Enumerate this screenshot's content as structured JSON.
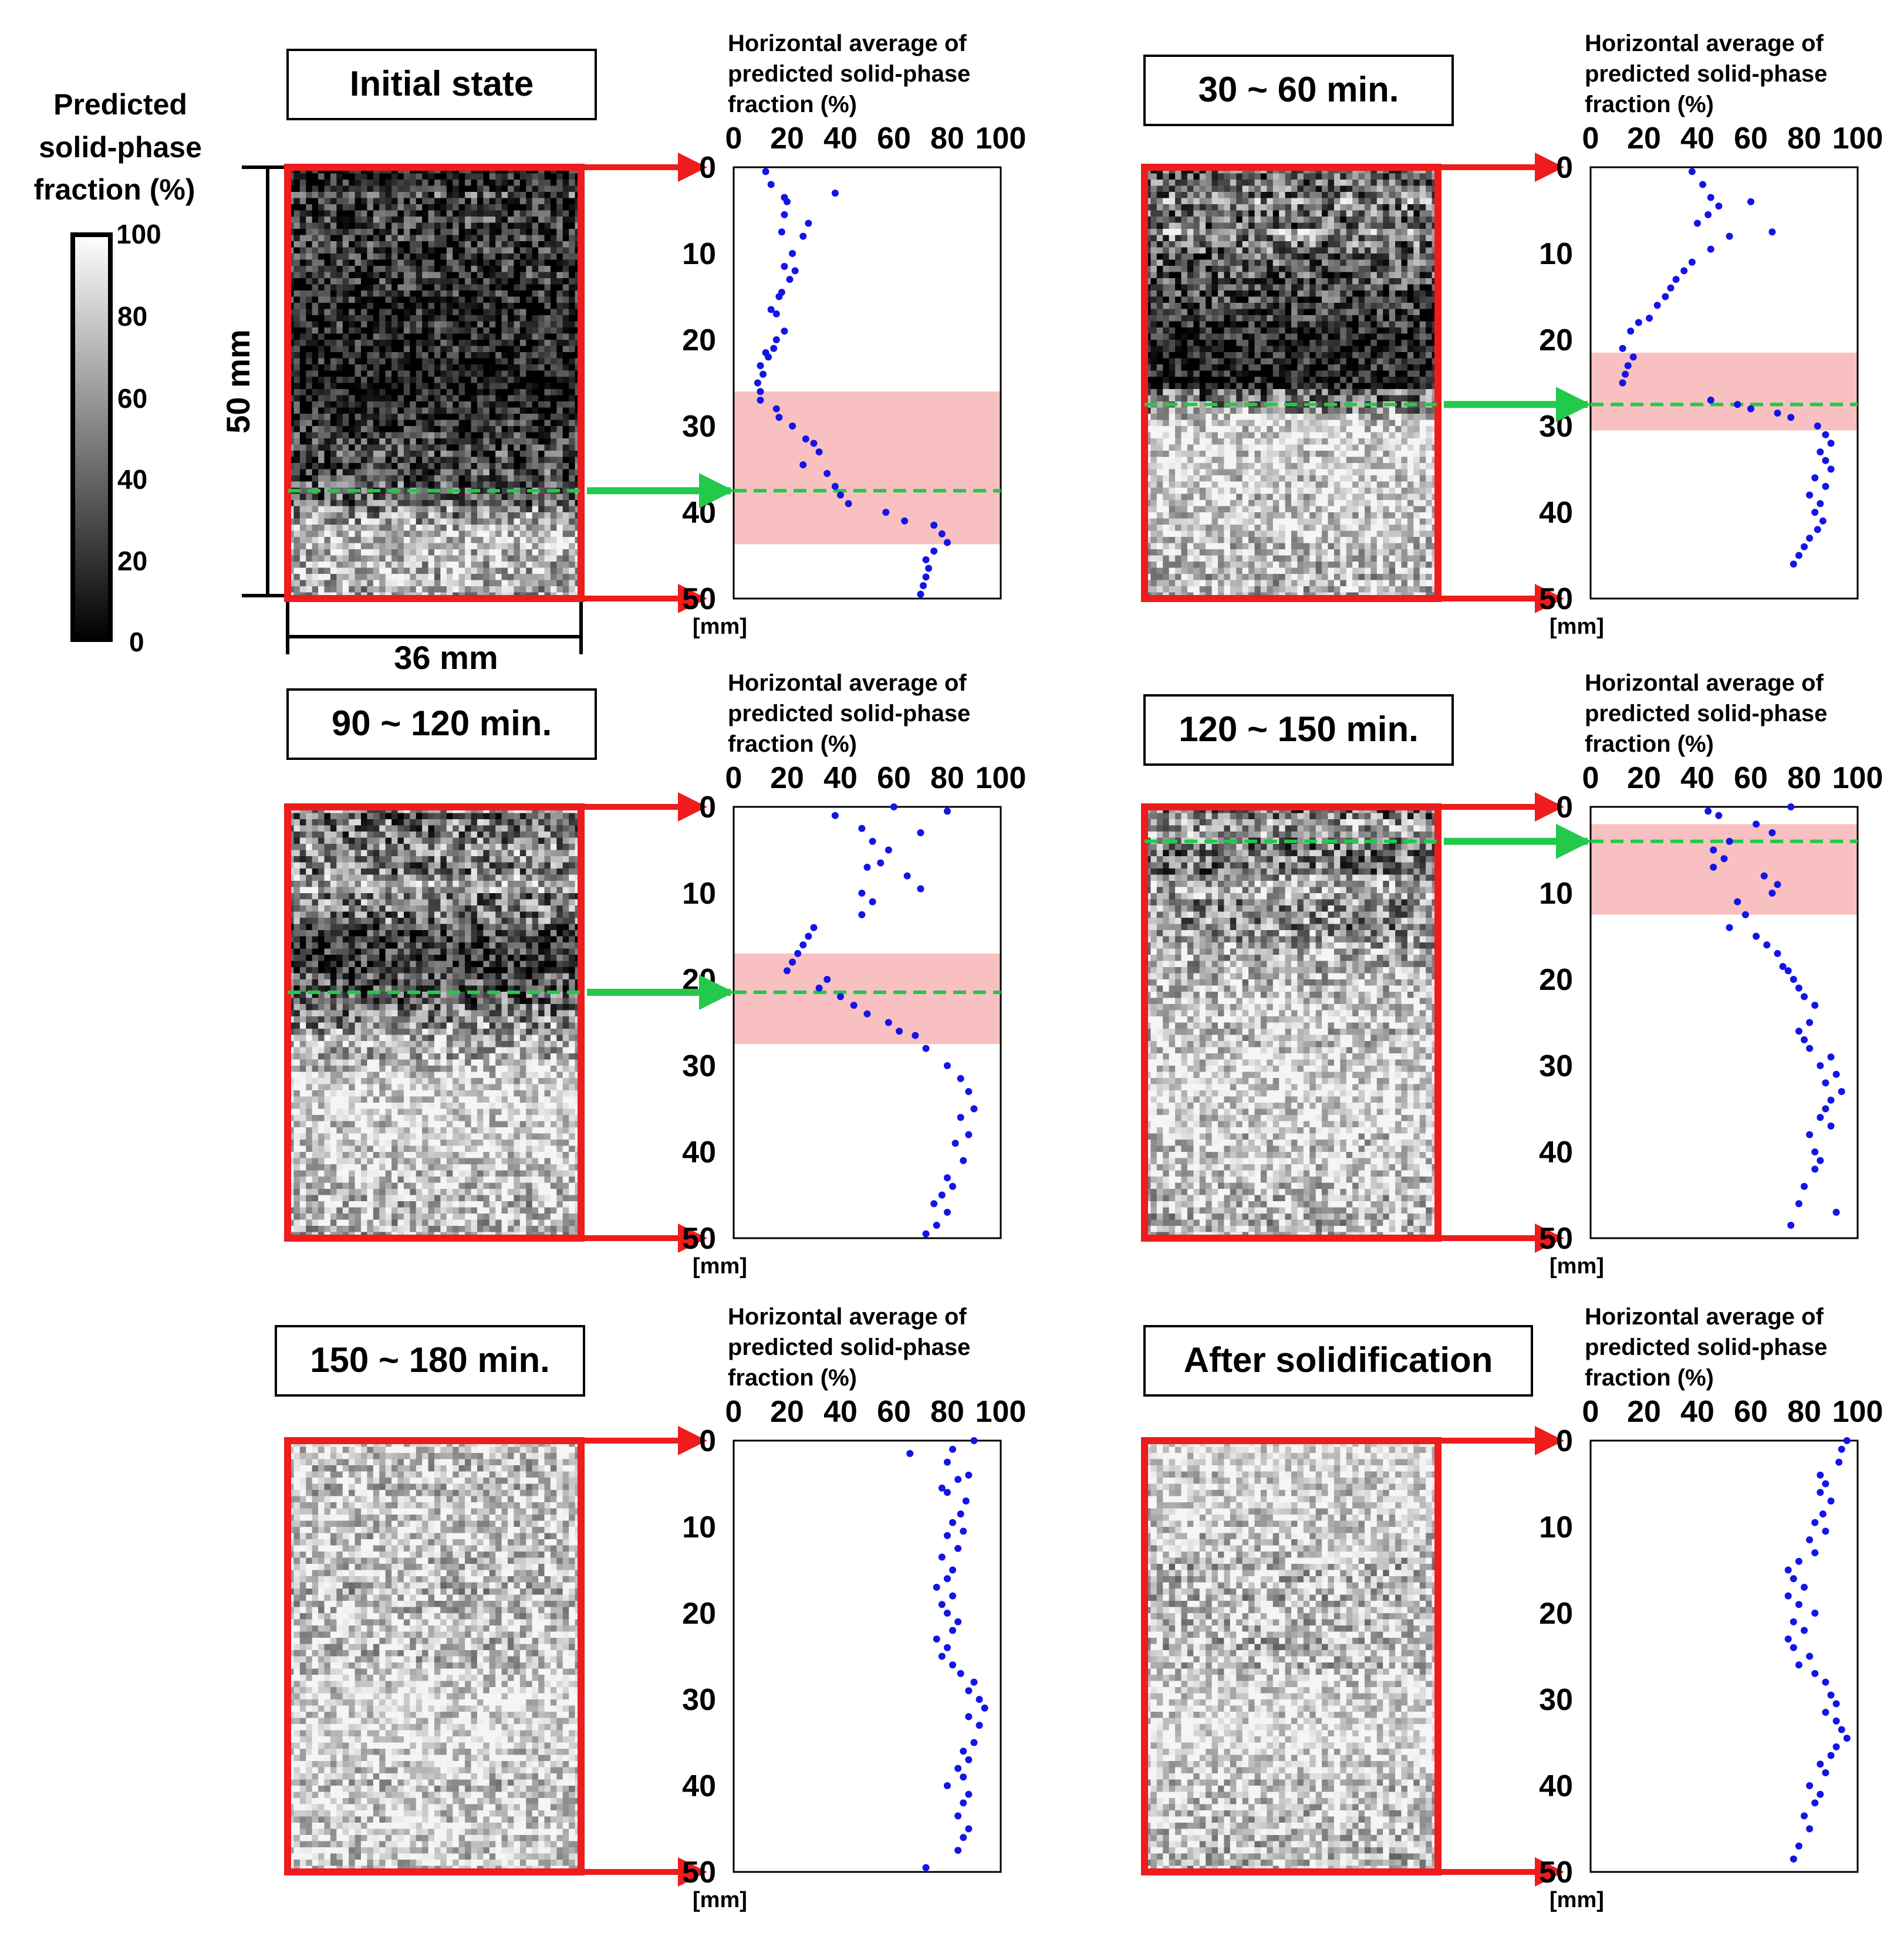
{
  "colorbar": {
    "title_lines": [
      "Predicted",
      "solid-phase",
      "fraction (%)"
    ],
    "ticks": [
      "100",
      "80",
      "60",
      "40",
      "20",
      "0"
    ]
  },
  "dimensions": {
    "height_label": "50 mm",
    "width_label": "36 mm"
  },
  "axis_title_lines": [
    "Horizontal average of",
    "predicted solid-phase",
    "fraction (%)"
  ],
  "x_ticks": [
    "0",
    "20",
    "40",
    "60",
    "80",
    "100"
  ],
  "y_ticks": [
    "0",
    "10",
    "20",
    "30",
    "40",
    "50"
  ],
  "y_unit": "[mm]",
  "colors": {
    "frame": "#ee1c1c",
    "points": "#1414e6",
    "interface": "#22c94a",
    "band": "#f7b5b5"
  },
  "chart_data": [
    {
      "type": "scatter",
      "title": "Initial state",
      "xlabel": "Horizontal average of predicted solid-phase fraction (%)",
      "ylabel": "[mm]",
      "xlim": [
        0,
        100
      ],
      "ylim": [
        50,
        0
      ],
      "interface_depth_mm": 37.5,
      "band_mm": [
        26,
        43.7
      ],
      "x": [
        12,
        14,
        19,
        20,
        19,
        38,
        18,
        28,
        26,
        22,
        19,
        23,
        21,
        18,
        17,
        16,
        14,
        19,
        16,
        15,
        12,
        13,
        10,
        11,
        9,
        10,
        10,
        16,
        17,
        22,
        27,
        30,
        32,
        26,
        35,
        38,
        40,
        43,
        57,
        64,
        75,
        78,
        80,
        75,
        72,
        73,
        72,
        71,
        70
      ],
      "y": [
        0.5,
        2,
        3.5,
        4,
        5.5,
        3,
        7.5,
        6.5,
        8,
        10,
        11.5,
        12,
        13,
        14.5,
        15,
        17,
        16.5,
        19,
        20,
        21,
        21.5,
        22,
        23,
        24,
        25,
        26,
        27,
        28,
        29,
        30,
        31.5,
        32,
        33,
        34.5,
        35.5,
        37,
        38,
        39,
        40,
        41,
        41.5,
        42.5,
        43.5,
        44.5,
        45.5,
        46.5,
        47.5,
        48.5,
        49.5
      ]
    },
    {
      "type": "scatter",
      "title": "30 ~ 60 min.",
      "xlabel": "Horizontal average of predicted solid-phase fraction (%)",
      "ylabel": "[mm]",
      "xlim": [
        0,
        100
      ],
      "ylim": [
        50,
        0
      ],
      "interface_depth_mm": 27.5,
      "band_mm": [
        21.5,
        30.5
      ],
      "x": [
        38,
        42,
        45,
        60,
        48,
        44,
        40,
        68,
        52,
        45,
        38,
        35,
        32,
        30,
        28,
        25,
        22,
        18,
        15,
        12,
        16,
        14,
        13,
        12,
        45,
        55,
        60,
        70,
        75,
        85,
        88,
        90,
        86,
        88,
        90,
        84,
        88,
        82,
        86,
        84,
        87,
        85,
        82,
        80,
        78,
        76
      ],
      "y": [
        0.5,
        2,
        3.5,
        4,
        4.5,
        5.5,
        6.5,
        7.5,
        8,
        9.5,
        11,
        12,
        13,
        14,
        15,
        16,
        17.5,
        18,
        19,
        21,
        22,
        23,
        24,
        25,
        27,
        27.5,
        28,
        28.5,
        29,
        30,
        31,
        32,
        33,
        34,
        35,
        36,
        37,
        38,
        39,
        40,
        41,
        42,
        43,
        44,
        45,
        46
      ]
    },
    {
      "type": "scatter",
      "title": "90 ~ 120 min.",
      "xlabel": "Horizontal average of predicted solid-phase fraction (%)",
      "ylabel": "[mm]",
      "xlim": [
        0,
        100
      ],
      "ylim": [
        50,
        0
      ],
      "interface_depth_mm": 21.5,
      "band_mm": [
        17,
        27.5
      ],
      "x": [
        60,
        38,
        48,
        52,
        58,
        55,
        50,
        65,
        70,
        48,
        52,
        48,
        30,
        28,
        26,
        24,
        22,
        20,
        35,
        32,
        40,
        45,
        50,
        58,
        62,
        68,
        72,
        80,
        85,
        88,
        90,
        85,
        88,
        83,
        86,
        80,
        82,
        78,
        75,
        80,
        76,
        72
      ],
      "y": [
        0,
        1,
        2.5,
        4,
        5,
        6.5,
        7,
        8,
        9.5,
        10,
        11,
        12.5,
        14,
        15,
        16,
        17,
        18,
        19,
        20,
        21,
        22,
        23,
        24,
        25,
        26,
        26.5,
        28,
        30,
        31.5,
        33,
        35,
        36,
        38,
        39,
        41,
        43,
        44,
        45,
        46,
        47,
        48.5,
        49.5
      ],
      "extra": {
        "x": [
          70,
          80
        ],
        "y": [
          3,
          0.5
        ]
      }
    },
    {
      "type": "scatter",
      "title": "120 ~ 150 min.",
      "xlabel": "Horizontal average of predicted solid-phase fraction (%)",
      "ylabel": "[mm]",
      "xlim": [
        0,
        100
      ],
      "ylim": [
        50,
        0
      ],
      "interface_depth_mm": 4,
      "band_mm": [
        2,
        12.5
      ],
      "x": [
        75,
        44,
        48,
        62,
        68,
        52,
        46,
        50,
        46,
        65,
        70,
        68,
        55,
        58,
        52,
        62,
        66,
        70,
        72,
        74,
        76,
        78,
        84,
        80,
        82,
        78,
        80,
        82,
        90,
        86,
        92,
        88,
        94,
        90,
        88,
        86,
        90,
        82,
        84,
        86,
        84,
        80,
        78,
        75
      ],
      "y": [
        0,
        0.5,
        1,
        2,
        3,
        4,
        5,
        6,
        7,
        8,
        9,
        10,
        11,
        12.5,
        14,
        15,
        16,
        17,
        18.5,
        19,
        20,
        21,
        23,
        22,
        25,
        26,
        27,
        28,
        29,
        30,
        31,
        32,
        33,
        34,
        35,
        36,
        37,
        38,
        40,
        41,
        42,
        44,
        46,
        48.5
      ],
      "extra": {
        "x": [
          92
        ],
        "y": [
          47
        ]
      }
    },
    {
      "type": "scatter",
      "title": "150 ~ 180 min.",
      "xlabel": "Horizontal average of predicted solid-phase fraction (%)",
      "ylabel": "[mm]",
      "xlim": [
        0,
        100
      ],
      "ylim": [
        50,
        0
      ],
      "interface_depth_mm": null,
      "band_mm": null,
      "x": [
        90,
        82,
        80,
        88,
        84,
        78,
        80,
        87,
        85,
        82,
        86,
        80,
        84,
        78,
        82,
        80,
        76,
        82,
        78,
        80,
        84,
        82,
        76,
        80,
        78,
        82,
        85,
        90,
        88,
        92,
        94,
        88,
        92,
        90,
        86,
        88,
        84,
        86,
        80,
        88,
        86,
        84,
        88,
        86,
        84
      ],
      "y": [
        0,
        1,
        2.5,
        4,
        4.5,
        5.5,
        6,
        7,
        8.5,
        9.5,
        10.5,
        11,
        12.5,
        13.5,
        15,
        16,
        17,
        18,
        19,
        20,
        21,
        22,
        23,
        24,
        25,
        26,
        27,
        28,
        29,
        30,
        31,
        32,
        33,
        35,
        36,
        37,
        38,
        39,
        40,
        41,
        42,
        43.5,
        45,
        46,
        47.5
      ],
      "extra": {
        "x": [
          66,
          72
        ],
        "y": [
          1.5,
          49.5
        ]
      }
    },
    {
      "type": "scatter",
      "title": "After solidification",
      "xlabel": "Horizontal average of predicted solid-phase fraction (%)",
      "ylabel": "[mm]",
      "xlim": [
        0,
        100
      ],
      "ylim": [
        50,
        0
      ],
      "interface_depth_mm": null,
      "band_mm": null,
      "x": [
        96,
        94,
        93,
        86,
        88,
        86,
        90,
        87,
        84,
        88,
        82,
        84,
        78,
        74,
        76,
        80,
        74,
        78,
        84,
        76,
        80,
        74,
        76,
        82,
        78,
        84,
        88,
        90,
        92,
        88,
        92,
        94,
        96,
        92,
        90,
        86,
        88,
        82,
        86,
        84,
        80,
        82,
        78,
        76
      ],
      "y": [
        0,
        1,
        2.5,
        4,
        5,
        6,
        7,
        8.5,
        9.5,
        10.5,
        11.5,
        13,
        14,
        15,
        16,
        17,
        18,
        19,
        20,
        21,
        22,
        23,
        24,
        25,
        26,
        27,
        28,
        29.5,
        30.5,
        31.5,
        32.5,
        33.5,
        34.5,
        35.5,
        36.5,
        37.5,
        38.5,
        40,
        41,
        42,
        43.5,
        45,
        47,
        48.5
      ]
    }
  ]
}
